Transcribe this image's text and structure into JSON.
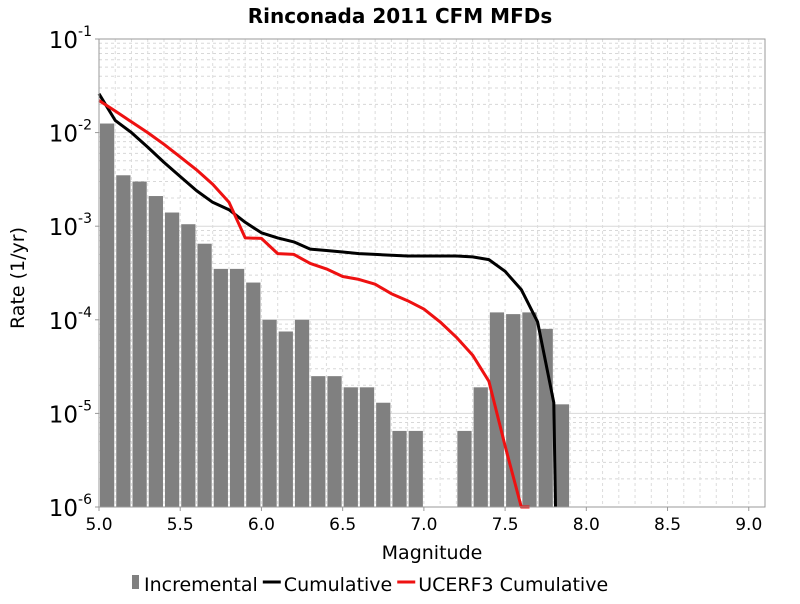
{
  "chart_data": {
    "type": "bar",
    "title": "Rinconada 2011 CFM MFDs",
    "xlabel": "Magnitude",
    "ylabel": "Rate (1/yr)",
    "xlim": [
      5.0,
      9.1
    ],
    "ylim": [
      1e-06,
      0.1
    ],
    "y_scale": "log",
    "grid": true,
    "legend_position": "bottom",
    "x_ticks": [
      "5.0",
      "5.5",
      "6.0",
      "6.5",
      "7.0",
      "7.5",
      "8.0",
      "8.5",
      "9.0"
    ],
    "y_ticks": [
      {
        "base": "10",
        "exp": "-6"
      },
      {
        "base": "10",
        "exp": "-5"
      },
      {
        "base": "10",
        "exp": "-4"
      },
      {
        "base": "10",
        "exp": "-3"
      },
      {
        "base": "10",
        "exp": "-2"
      },
      {
        "base": "10",
        "exp": "-1"
      }
    ],
    "series": [
      {
        "name": "Incremental",
        "kind": "bar",
        "color": "#808080",
        "x": [
          5.05,
          5.15,
          5.25,
          5.35,
          5.45,
          5.55,
          5.65,
          5.75,
          5.85,
          5.95,
          6.05,
          6.15,
          6.25,
          6.35,
          6.45,
          6.55,
          6.65,
          6.75,
          6.85,
          6.95,
          7.05,
          7.15,
          7.25,
          7.35,
          7.45,
          7.55,
          7.65,
          7.75,
          7.85
        ],
        "values": [
          0.0125,
          0.0035,
          0.003,
          0.0021,
          0.0014,
          0.00105,
          0.00065,
          0.00035,
          0.00035,
          0.00025,
          0.0001,
          7.5e-05,
          0.0001,
          2.5e-05,
          2.5e-05,
          1.9e-05,
          1.9e-05,
          1.3e-05,
          6.5e-06,
          6.5e-06,
          0,
          0,
          6.5e-06,
          1.9e-05,
          0.00012,
          0.000115,
          0.00012,
          8e-05,
          1.25e-05
        ]
      },
      {
        "name": "Cumulative",
        "kind": "line",
        "color": "#000000",
        "x": [
          5.0,
          5.1,
          5.2,
          5.3,
          5.4,
          5.5,
          5.6,
          5.7,
          5.8,
          5.9,
          6.0,
          6.1,
          6.2,
          6.3,
          6.4,
          6.5,
          6.6,
          6.7,
          6.8,
          6.9,
          7.0,
          7.1,
          7.2,
          7.3,
          7.4,
          7.5,
          7.6,
          7.7,
          7.8,
          7.81
        ],
        "values": [
          0.026,
          0.0135,
          0.01,
          0.007,
          0.0048,
          0.0034,
          0.0024,
          0.0018,
          0.0015,
          0.0011,
          0.00085,
          0.00075,
          0.00068,
          0.00057,
          0.00055,
          0.00053,
          0.00051,
          0.0005,
          0.00049,
          0.00048,
          0.00048,
          0.00048,
          0.00048,
          0.00047,
          0.00044,
          0.00033,
          0.00021,
          9.5e-05,
          1.3e-05,
          1e-06
        ]
      },
      {
        "name": "UCERF3 Cumulative",
        "kind": "line",
        "color": "#ee1111",
        "x": [
          5.0,
          5.1,
          5.2,
          5.3,
          5.4,
          5.5,
          5.6,
          5.7,
          5.8,
          5.9,
          6.0,
          6.1,
          6.2,
          6.3,
          6.4,
          6.5,
          6.6,
          6.7,
          6.8,
          6.9,
          7.0,
          7.1,
          7.2,
          7.3,
          7.4,
          7.5,
          7.6,
          7.65
        ],
        "values": [
          0.022,
          0.017,
          0.013,
          0.01,
          0.0075,
          0.0055,
          0.004,
          0.0028,
          0.0018,
          0.00075,
          0.00074,
          0.00051,
          0.0005,
          0.0004,
          0.00035,
          0.00029,
          0.00027,
          0.00024,
          0.00019,
          0.00016,
          0.00013,
          9.5e-05,
          6.5e-05,
          4.2e-05,
          2.2e-05,
          4.5e-06,
          1e-06,
          1e-06
        ]
      }
    ]
  }
}
